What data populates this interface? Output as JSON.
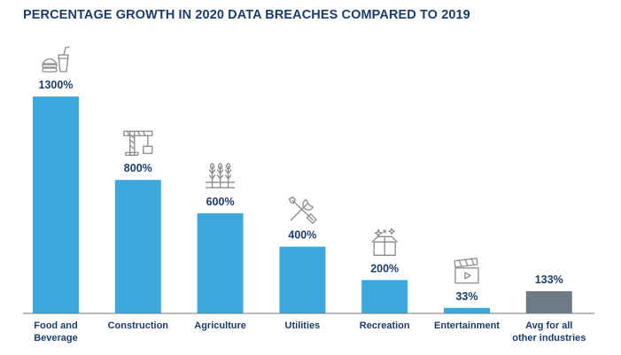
{
  "chart_data": {
    "type": "bar",
    "title": "PERCENTAGE GROWTH IN 2020 DATA BREACHES COMPARED TO 2019",
    "xlabel": "",
    "ylabel": "",
    "unit": "%",
    "ylim": [
      0,
      1300
    ],
    "grid": false,
    "legend": "none",
    "categories": [
      "Food and Beverage",
      "Construction",
      "Agriculture",
      "Utilities",
      "Recreation",
      "Entertainment",
      "Avg for all other industries"
    ],
    "category_lines": [
      [
        "Food and",
        "Beverage"
      ],
      [
        "Construction"
      ],
      [
        "Agriculture"
      ],
      [
        "Utilities"
      ],
      [
        "Recreation"
      ],
      [
        "Entertainment"
      ],
      [
        "Avg for all",
        "other industries"
      ]
    ],
    "values": [
      1300,
      800,
      600,
      400,
      200,
      33,
      133
    ],
    "value_labels": [
      "1300%",
      "800%",
      "600%",
      "400%",
      "200%",
      "33%",
      "133%"
    ],
    "bar_colors": [
      "#3ca8dc",
      "#3ca8dc",
      "#3ca8dc",
      "#3ca8dc",
      "#3ca8dc",
      "#3ca8dc",
      "#6e7b85"
    ],
    "icons": [
      "food-and-beverage-icon",
      "construction-crane-icon",
      "agriculture-wheat-icon",
      "utilities-tools-icon",
      "recreation-gift-box-icon",
      "entertainment-clapperboard-icon",
      ""
    ]
  },
  "colors": {
    "title": "#1c3d6b",
    "labels": "#1c3d6b",
    "baseline": "#6e7b85",
    "icon_stroke": "#8a8a8a"
  }
}
